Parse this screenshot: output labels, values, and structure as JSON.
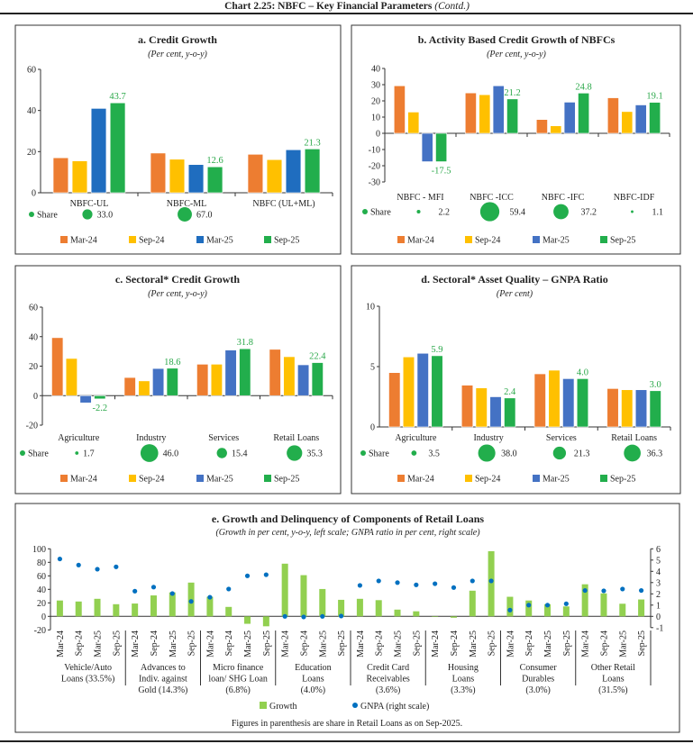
{
  "header": {
    "title": "Chart 2.25: NBFC – Key Financial Parameters",
    "title_suffix": "(Contd.)"
  },
  "series_names": [
    "Mar-24",
    "Sep-24",
    "Mar-25",
    "Sep-25"
  ],
  "colors": {
    "Mar-24": "#ED7D31",
    "Sep-24": "#FFC000",
    "Mar-25": "#4472C4",
    "Mar-25-panel-a": "#1F6DBF",
    "Sep-25": "#22AE4C",
    "label": "#2BA84A",
    "share": "#22AE4C",
    "growth": "#92D050",
    "gnpa": "#0070C0"
  },
  "share_label": "Share",
  "chart_data": [
    {
      "id": "a",
      "type": "bar",
      "title": "a. Credit Growth",
      "subtitle": "(Per cent, y-o-y)",
      "ylim": [
        0,
        60
      ],
      "yticks": [
        "0",
        "20",
        "40",
        "60"
      ],
      "categories": [
        "NBFC-UL",
        "NBFC-ML",
        "NBFC (UL+ML)"
      ],
      "series": [
        {
          "name": "Mar-24",
          "values": [
            17.0,
            19.3,
            18.7
          ]
        },
        {
          "name": "Sep-24",
          "values": [
            15.5,
            16.3,
            16.1
          ]
        },
        {
          "name": "Mar-25",
          "values": [
            41.0,
            13.7,
            20.9
          ]
        },
        {
          "name": "Sep-25",
          "values": [
            43.7,
            12.6,
            21.3
          ]
        }
      ],
      "data_labels": [
        "43.7",
        "12.6",
        "21.3"
      ],
      "share": [
        33.0,
        67.0,
        null
      ],
      "share_text": [
        "33.0",
        "67.0",
        null
      ],
      "legend": "bottom"
    },
    {
      "id": "b",
      "type": "bar",
      "title": "b. Activity Based Credit Growth of NBFCs",
      "subtitle": "(Per cent, y-o-y)",
      "ylim": [
        -30,
        40
      ],
      "yticks": [
        "-30",
        "-20",
        "-10",
        "0",
        "10",
        "20",
        "30",
        "40"
      ],
      "categories": [
        "NBFC - MFI",
        "NBFC -ICC",
        "NBFC -IFC",
        "NBFC-IDF"
      ],
      "series": [
        {
          "name": "Mar-24",
          "values": [
            29.3,
            24.9,
            8.5,
            21.9
          ]
        },
        {
          "name": "Sep-24",
          "values": [
            13.1,
            23.8,
            4.6,
            13.4
          ]
        },
        {
          "name": "Mar-25",
          "values": [
            -17.5,
            29.3,
            19.2,
            17.5
          ]
        },
        {
          "name": "Sep-25",
          "values": [
            -17.5,
            21.2,
            24.8,
            19.1
          ]
        }
      ],
      "data_labels": [
        "-17.5",
        "21.2",
        "24.8",
        "19.1"
      ],
      "share": [
        2.2,
        59.4,
        37.2,
        1.1
      ],
      "share_text": [
        "2.2",
        "59.4",
        "37.2",
        "1.1"
      ],
      "legend": "bottom"
    },
    {
      "id": "c",
      "type": "bar",
      "title": "c. Sectoral* Credit Growth",
      "subtitle": "(Per cent, y-o-y)",
      "ylim": [
        -20,
        60
      ],
      "yticks": [
        "-20",
        "0",
        "20",
        "40",
        "60"
      ],
      "categories": [
        "Agriculture",
        "Industry",
        "Services",
        "Retail Loans"
      ],
      "series": [
        {
          "name": "Mar-24",
          "values": [
            39.3,
            12.3,
            21.3,
            31.4
          ]
        },
        {
          "name": "Sep-24",
          "values": [
            25.2,
            10.0,
            21.3,
            26.4
          ]
        },
        {
          "name": "Mar-25",
          "values": [
            -4.9,
            18.4,
            30.9,
            20.9
          ]
        },
        {
          "name": "Sep-25",
          "values": [
            -2.2,
            18.6,
            31.8,
            22.4
          ]
        }
      ],
      "data_labels": [
        "-2.2",
        "18.6",
        "31.8",
        "22.4"
      ],
      "share": [
        1.7,
        46.0,
        15.4,
        35.3
      ],
      "share_text": [
        "1.7",
        "46.0",
        "15.4",
        "35.3"
      ],
      "legend": "bottom"
    },
    {
      "id": "d",
      "type": "bar",
      "title": "d. Sectoral* Asset Quality – GNPA Ratio",
      "subtitle": "(Per cent)",
      "ylim": [
        0,
        10
      ],
      "yticks": [
        "0",
        "5",
        "10"
      ],
      "categories": [
        "Agriculture",
        "Industry",
        "Services",
        "Retail Loans"
      ],
      "series": [
        {
          "name": "Mar-24",
          "values": [
            4.5,
            3.46,
            4.4,
            3.18
          ]
        },
        {
          "name": "Sep-24",
          "values": [
            5.8,
            3.23,
            4.7,
            3.08
          ]
        },
        {
          "name": "Mar-25",
          "values": [
            6.1,
            2.5,
            4.0,
            3.08
          ]
        },
        {
          "name": "Sep-25",
          "values": [
            5.9,
            2.4,
            4.0,
            3.0
          ]
        }
      ],
      "data_labels": [
        "5.9",
        "2.4",
        "4.0",
        "3.0"
      ],
      "share": [
        3.5,
        38.0,
        21.3,
        36.3
      ],
      "share_text": [
        "3.5",
        "38.0",
        "21.3",
        "36.3"
      ],
      "legend": "bottom"
    },
    {
      "id": "e",
      "type": "bar+scatter",
      "title": "e. Growth and Delinquency of Components of Retail Loans",
      "subtitle": "(Growth in per cent, y-o-y, left scale; GNPA ratio in per cent, right scale)",
      "ylim": [
        -20,
        100
      ],
      "yticks": [
        "-20",
        "0",
        "20",
        "40",
        "60",
        "80",
        "100"
      ],
      "y2lim": [
        -1,
        6
      ],
      "y2ticks": [
        "-1",
        "0",
        "1",
        "2",
        "3",
        "4",
        "5",
        "6"
      ],
      "periods": [
        "Mar-24",
        "Sep-24",
        "Mar-25",
        "Sep-25"
      ],
      "groups": [
        {
          "label": [
            "Vehicle/Auto",
            "Loans (33.5%)"
          ],
          "growth": [
            23.5,
            22,
            26,
            18
          ],
          "gnpa": [
            5.1,
            4.56,
            4.19,
            4.4
          ]
        },
        {
          "label": [
            "Advances to",
            "Indiv. against",
            "Gold (14.3%)"
          ],
          "growth": [
            19,
            31,
            35.5,
            50
          ],
          "gnpa": [
            2.24,
            2.6,
            2.03,
            1.33
          ]
        },
        {
          "label": [
            "Micro finance",
            "loan/ SHG Loan",
            "(6.8%)"
          ],
          "growth": [
            29,
            14,
            -11,
            -14.7
          ],
          "gnpa": [
            1.7,
            2.43,
            3.6,
            3.7
          ]
        },
        {
          "label": [
            "Education",
            "Loans",
            "(4.0%)"
          ],
          "growth": [
            78,
            61,
            40.5,
            24.5
          ],
          "gnpa": [
            0.0,
            -0.05,
            0.0,
            0.03
          ]
        },
        {
          "label": [
            "Credit Card",
            "Receivables",
            "(3.6%)"
          ],
          "growth": [
            26,
            24,
            10,
            7.5
          ],
          "gnpa": [
            2.75,
            3.15,
            3.0,
            2.8
          ]
        },
        {
          "label": [
            "Housing",
            "Loans",
            "(3.3%)"
          ],
          "growth": [
            0,
            -2,
            38,
            96.5
          ],
          "gnpa": [
            2.9,
            2.56,
            3.15,
            3.15
          ]
        },
        {
          "label": [
            "Consumer",
            "Durables",
            "(3.0%)"
          ],
          "growth": [
            29,
            23.5,
            18,
            14.7
          ],
          "gnpa": [
            0.56,
            1.0,
            1.0,
            1.12
          ]
        },
        {
          "label": [
            "Other Retail",
            "Loans",
            "(31.5%)"
          ],
          "growth": [
            47.5,
            34,
            18.7,
            25
          ],
          "gnpa": [
            2.3,
            2.27,
            2.43,
            2.3
          ]
        }
      ],
      "legend": [
        "Growth",
        "GNPA (right scale)"
      ],
      "note": "Figures in parenthesis are share in Retail Loans as on Sep-2025."
    }
  ]
}
